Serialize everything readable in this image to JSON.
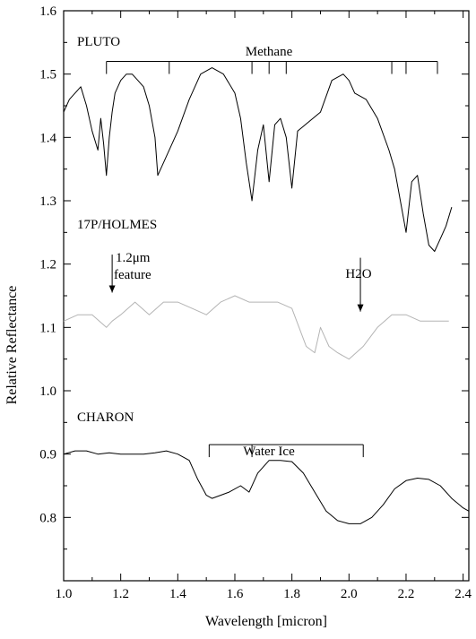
{
  "chart_data": {
    "type": "line",
    "xlabel": "Wavelength [micron]",
    "ylabel": "Relative Reflectance",
    "xlim": [
      1.0,
      2.42
    ],
    "ylim": [
      0.7,
      1.6
    ],
    "xticks": [
      "1.0",
      "1.2",
      "1.4",
      "1.6",
      "1.8",
      "2.0",
      "2.2",
      "2.4"
    ],
    "yticks": [
      "0.8",
      "0.9",
      "1.0",
      "1.1",
      "1.2",
      "1.3",
      "1.4",
      "1.5",
      "1.6"
    ],
    "series": [
      {
        "name": "PLUTO",
        "color": "#000000",
        "x": [
          1.0,
          1.02,
          1.04,
          1.06,
          1.08,
          1.1,
          1.12,
          1.13,
          1.14,
          1.15,
          1.16,
          1.17,
          1.18,
          1.2,
          1.22,
          1.24,
          1.26,
          1.28,
          1.3,
          1.32,
          1.33,
          1.35,
          1.4,
          1.44,
          1.48,
          1.52,
          1.56,
          1.6,
          1.62,
          1.64,
          1.66,
          1.68,
          1.7,
          1.72,
          1.74,
          1.76,
          1.78,
          1.8,
          1.82,
          1.9,
          1.94,
          1.98,
          2.0,
          2.02,
          2.06,
          2.1,
          2.14,
          2.16,
          2.18,
          2.2,
          2.22,
          2.24,
          2.26,
          2.28,
          2.3,
          2.32,
          2.34,
          2.36
        ],
        "y": [
          1.44,
          1.46,
          1.47,
          1.48,
          1.45,
          1.41,
          1.38,
          1.43,
          1.39,
          1.34,
          1.4,
          1.44,
          1.47,
          1.49,
          1.5,
          1.5,
          1.49,
          1.48,
          1.45,
          1.4,
          1.34,
          1.36,
          1.41,
          1.46,
          1.5,
          1.51,
          1.5,
          1.47,
          1.43,
          1.36,
          1.3,
          1.38,
          1.42,
          1.33,
          1.42,
          1.43,
          1.4,
          1.32,
          1.41,
          1.44,
          1.49,
          1.5,
          1.49,
          1.47,
          1.46,
          1.43,
          1.38,
          1.35,
          1.3,
          1.25,
          1.33,
          1.34,
          1.28,
          1.23,
          1.22,
          1.24,
          1.26,
          1.29
        ]
      },
      {
        "name": "17P/HOLMES",
        "color": "#b4b4b4",
        "x": [
          1.0,
          1.05,
          1.1,
          1.15,
          1.17,
          1.2,
          1.25,
          1.3,
          1.35,
          1.4,
          1.45,
          1.5,
          1.55,
          1.6,
          1.65,
          1.7,
          1.75,
          1.8,
          1.85,
          1.88,
          1.9,
          1.93,
          1.96,
          2.0,
          2.05,
          2.1,
          2.15,
          2.2,
          2.25,
          2.3,
          2.35
        ],
        "y": [
          1.11,
          1.12,
          1.12,
          1.1,
          1.11,
          1.12,
          1.14,
          1.12,
          1.14,
          1.14,
          1.13,
          1.12,
          1.14,
          1.15,
          1.14,
          1.14,
          1.14,
          1.13,
          1.07,
          1.06,
          1.1,
          1.07,
          1.06,
          1.05,
          1.07,
          1.1,
          1.12,
          1.12,
          1.11,
          1.11,
          1.11
        ]
      },
      {
        "name": "CHARON",
        "color": "#000000",
        "x": [
          1.0,
          1.04,
          1.08,
          1.12,
          1.16,
          1.2,
          1.24,
          1.28,
          1.32,
          1.36,
          1.4,
          1.44,
          1.47,
          1.5,
          1.52,
          1.55,
          1.58,
          1.62,
          1.65,
          1.68,
          1.72,
          1.76,
          1.8,
          1.84,
          1.88,
          1.92,
          1.96,
          2.0,
          2.04,
          2.08,
          2.12,
          2.16,
          2.2,
          2.24,
          2.28,
          2.32,
          2.36,
          2.4,
          2.42
        ],
        "y": [
          0.9,
          0.905,
          0.905,
          0.9,
          0.902,
          0.9,
          0.9,
          0.9,
          0.902,
          0.905,
          0.9,
          0.89,
          0.86,
          0.835,
          0.83,
          0.835,
          0.84,
          0.85,
          0.84,
          0.87,
          0.89,
          0.89,
          0.888,
          0.87,
          0.84,
          0.81,
          0.795,
          0.79,
          0.79,
          0.8,
          0.82,
          0.845,
          0.858,
          0.862,
          0.86,
          0.85,
          0.83,
          0.815,
          0.81
        ]
      }
    ],
    "annotations": {
      "pluto_label": "PLUTO",
      "holmes_label": "17P/HOLMES",
      "charon_label": "CHARON",
      "methane_label": "Methane",
      "feature_label_line1": "1.2μm",
      "feature_label_line2": "feature",
      "h2o_label": "H2O",
      "water_ice_label": "Water Ice"
    },
    "methane_bracket": {
      "y": 1.52,
      "x": [
        1.15,
        1.37,
        1.66,
        1.72,
        1.78,
        2.15,
        2.2,
        2.31
      ]
    },
    "water_ice_bracket": {
      "y": 0.915,
      "x": [
        1.51,
        1.66,
        2.05
      ]
    },
    "feature_arrow": {
      "x": 1.17,
      "from_y": 1.215,
      "to_y": 1.155
    },
    "h2o_arrow": {
      "x": 2.04,
      "from_y": 1.21,
      "to_y": 1.125
    },
    "grid": false
  }
}
